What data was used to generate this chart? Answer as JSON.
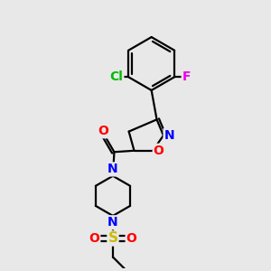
{
  "background_color": "#e8e8e8",
  "bond_color": "#000000",
  "bond_width": 1.6,
  "atom_colors": {
    "Cl": "#00bb00",
    "F": "#ee00ee",
    "N": "#0000ff",
    "O": "#ff0000",
    "S": "#ccbb00",
    "C": "#000000"
  },
  "figsize": [
    3.0,
    3.0
  ],
  "dpi": 100,
  "xlim": [
    0,
    10
  ],
  "ylim": [
    0,
    10
  ]
}
